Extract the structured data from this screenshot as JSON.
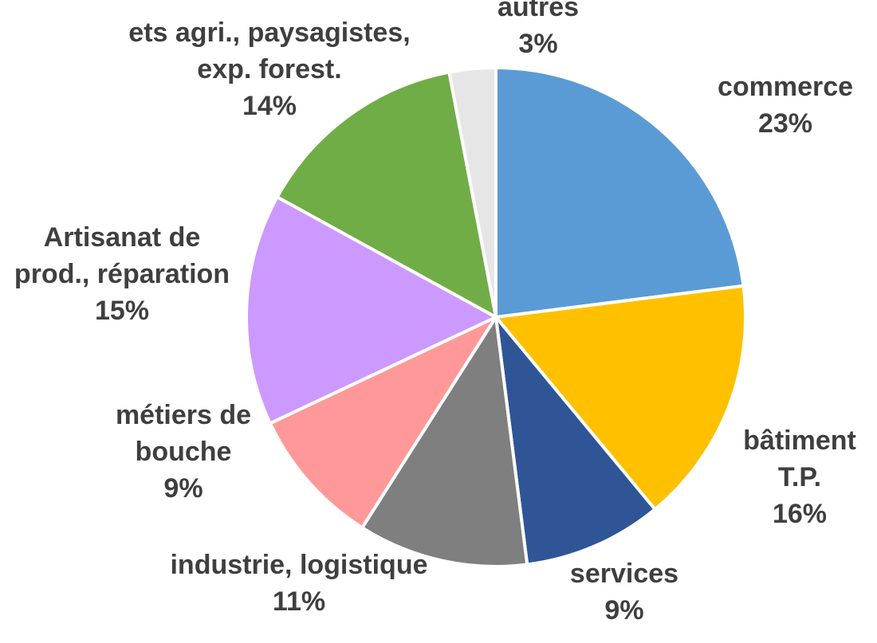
{
  "chart_data": {
    "type": "pie",
    "title": "",
    "slices": [
      {
        "lines": [
          "commerce"
        ],
        "pct_label": "23%",
        "value": 23,
        "color": "#5b9bd5"
      },
      {
        "lines": [
          "bâtiment",
          "T.P."
        ],
        "pct_label": "16%",
        "value": 16,
        "color": "#ffc000"
      },
      {
        "lines": [
          "services"
        ],
        "pct_label": "9%",
        "value": 9,
        "color": "#2f5597"
      },
      {
        "lines": [
          "industrie, logistique"
        ],
        "pct_label": "11%",
        "value": 11,
        "color": "#7f7f7f"
      },
      {
        "lines": [
          "métiers de",
          "bouche"
        ],
        "pct_label": "9%",
        "value": 9,
        "color": "#ff9999"
      },
      {
        "lines": [
          "Artisanat de",
          "prod., réparation"
        ],
        "pct_label": "15%",
        "value": 15,
        "color": "#cc99ff"
      },
      {
        "lines": [
          "ets agri., paysagistes,",
          "exp. forest."
        ],
        "pct_label": "14%",
        "value": 14,
        "color": "#70ad47"
      },
      {
        "lines": [
          "autres"
        ],
        "pct_label": "3%",
        "value": 3,
        "color": "#e7e6e6"
      }
    ],
    "start_angle_deg": 0,
    "direction": "clockwise"
  }
}
